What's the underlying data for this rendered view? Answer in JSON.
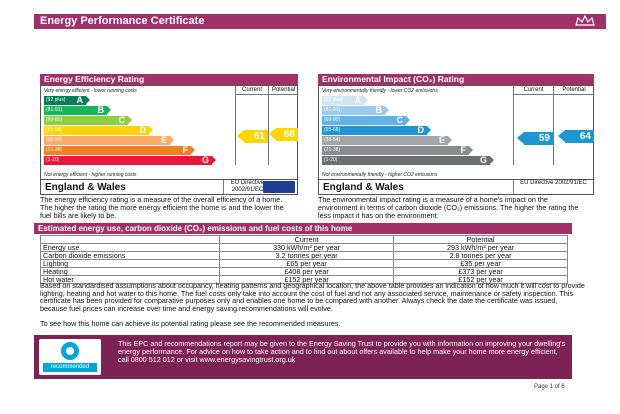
{
  "header": {
    "title": "Energy Performance Certificate"
  },
  "efficiency": {
    "title": "Energy Efficiency Rating",
    "col_current": "Current",
    "col_potential": "Potential",
    "top_hint": "Very energy efficient - lower running costs",
    "bottom_hint": "Not energy efficient - higher running costs",
    "bands": [
      {
        "range": "(92 plus)",
        "letter": "A",
        "color": "#008054"
      },
      {
        "range": "(81-91)",
        "letter": "B",
        "color": "#19b459"
      },
      {
        "range": "(69-80)",
        "letter": "C",
        "color": "#8dce46"
      },
      {
        "range": "(55-68)",
        "letter": "D",
        "color": "#ffd500"
      },
      {
        "range": "(39-54)",
        "letter": "E",
        "color": "#fcaa65"
      },
      {
        "range": "(21-38)",
        "letter": "F",
        "color": "#ef8023"
      },
      {
        "range": "(1-20)",
        "letter": "G",
        "color": "#e9153b"
      }
    ],
    "current": "61",
    "potential": "68",
    "current_color": "#ffd500",
    "potential_color": "#ffd500",
    "region": "England & Wales",
    "directive": "EU Directive 2002/91/EC"
  },
  "environmental": {
    "title": "Environmental Impact (CO₂) Rating",
    "col_current": "Current",
    "col_potential": "Potential",
    "top_hint": "Very environmentally friendly - lower CO2 emissions",
    "bottom_hint": "Not environmentally friendly - higher CO2 emissions",
    "bands": [
      {
        "range": "(92 plus)",
        "letter": "A",
        "color": "#cfe5f5"
      },
      {
        "range": "(81-91)",
        "letter": "B",
        "color": "#9bcbef"
      },
      {
        "range": "(69-80)",
        "letter": "C",
        "color": "#5fb3e5"
      },
      {
        "range": "(55-68)",
        "letter": "D",
        "color": "#1f96d2"
      },
      {
        "range": "(39-54)",
        "letter": "E",
        "color": "#a3a5a8"
      },
      {
        "range": "(21-38)",
        "letter": "F",
        "color": "#8a8c8e"
      },
      {
        "range": "(1-20)",
        "letter": "G",
        "color": "#6d6f71"
      }
    ],
    "current": "59",
    "potential": "64",
    "current_color": "#1f96d2",
    "potential_color": "#1f96d2",
    "region": "England & Wales",
    "directive": "EU Directive 2002/91/EC"
  },
  "descriptions": {
    "efficiency": "The energy efficiency rating is a measure of the overall efficiency of a home. The higher the rating the more energy efficient the home is and the lower the fuel bills are likely to be.",
    "environmental": "The environmental impact rating is a measure of a home's impact on the environment in terms of carbon dioxide (CO₂) emissions. The higher the rating the less impact it has on the environment."
  },
  "costs": {
    "title": "Estimated energy use, carbon dioxide (CO₂) emissions and fuel costs of this home",
    "col_current": "Current",
    "col_potential": "Potential",
    "rows": [
      {
        "label": "Energy use",
        "current": "330 kWh/m² per year",
        "potential": "293 kWh/m² per year"
      },
      {
        "label": "Carbon dioxide emissions",
        "current": "3.2 tonnes per year",
        "potential": "2.8 tonnes per year"
      },
      {
        "label": "Lighting",
        "current": "£65 per year",
        "potential": "£35 per year"
      },
      {
        "label": "Heating",
        "current": "£408 per year",
        "potential": "£373 per year"
      },
      {
        "label": "Hot water",
        "current": "£152 per year",
        "potential": "£152 per year"
      }
    ]
  },
  "paragraphs": {
    "assumptions": "Based on standardised assumptions about occupancy, heating patterns and geographical location, the above table provides an indication of how much it will cost to provide lighting, heating and hot water to this home. The fuel costs only take into account the cost of fuel and not any associated service, maintenance or safety inspection. This certificate has been provided for comparative purposes only and enables one home to be compared with another. Always check the date the certificate was issued, because fuel prices can increase over time and energy saving recommendations will evolve.",
    "see_how": "To see how this home can achieve its potential rating please see the recommended measures."
  },
  "est": {
    "logo_text": "recommended",
    "text": "This EPC and recommendations report may be given to the Energy Saving Trust to provide you with information on improving your dwelling's energy performance. For advice on how to take action and to find out about offers available to help make your home more energy efficient, call 0800 512 012 or visit www.energysavingtrust.org.uk"
  },
  "footer": {
    "page": "Page 1 of 6"
  }
}
